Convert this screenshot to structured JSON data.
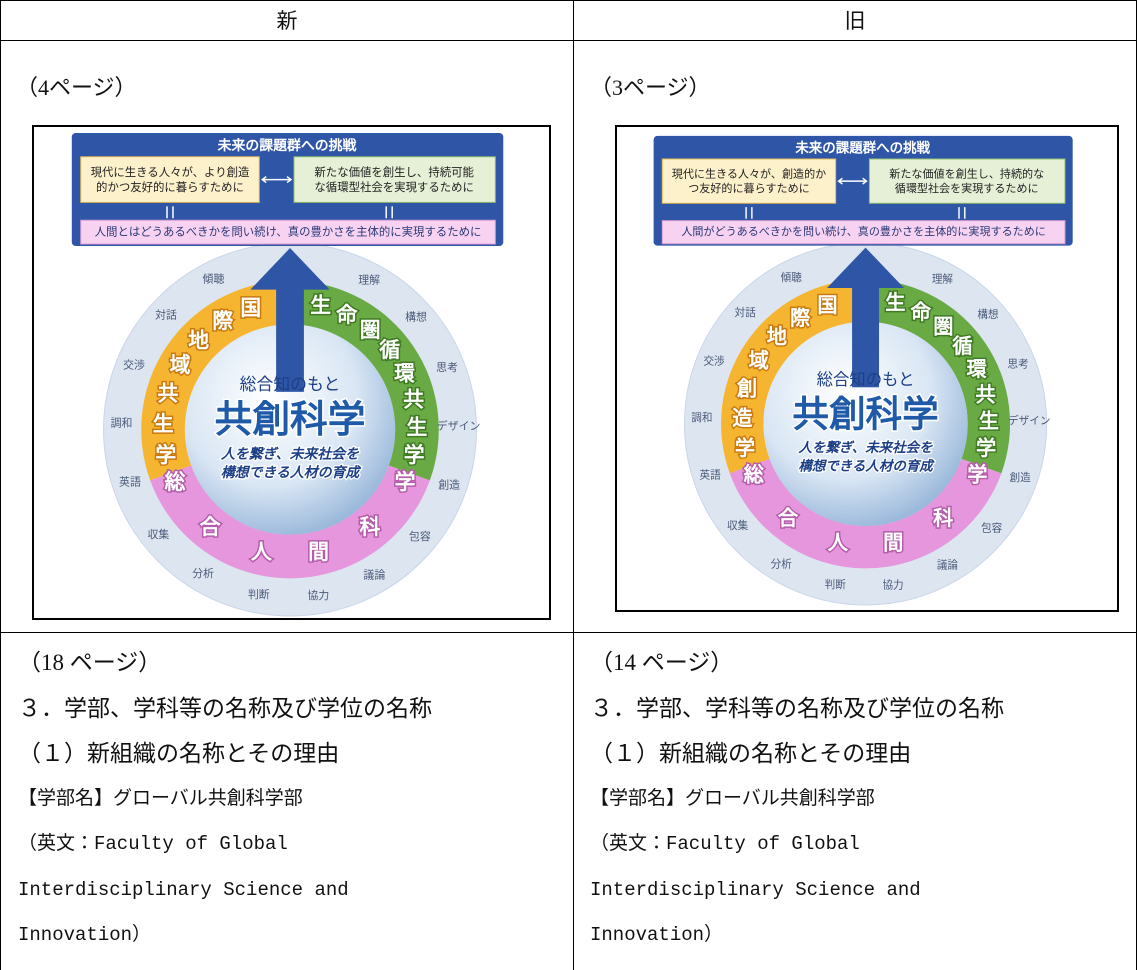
{
  "table": {
    "header": [
      "新",
      "旧"
    ],
    "columns": [
      {
        "page_label": "（4ページ）",
        "diagram": {
          "title": "未来の課題群への挑戦",
          "box_left": [
            "現代に生きる人々が、より創造",
            "的かつ友好的に暮らすために"
          ],
          "box_right": [
            "新たな価値を創生し、持続可能",
            "な循環型社会を実現するために"
          ],
          "bottom_bar": "人間とはどうあるべきかを問い続け、真の豊かさを主体的に実現するために",
          "left_arc": [
            "国",
            "際",
            "地",
            "域",
            "共",
            "生",
            "学"
          ],
          "right_arc": [
            "生",
            "命",
            "圏",
            "循",
            "環",
            "共",
            "生",
            "学"
          ],
          "bottom_arc": [
            "総",
            "合",
            "人",
            "間",
            "科",
            "学"
          ],
          "outer_words": [
            "理解",
            "構想",
            "思考",
            "デザイン",
            "創造",
            "包容",
            "議論",
            "協力",
            "判断",
            "分析",
            "収集",
            "英語",
            "調和",
            "交渉",
            "対話",
            "傾聴"
          ],
          "center_caption": "総合知のもと",
          "center_title": "共創科学",
          "center_tagline": [
            "人を繋ぎ、未来社会を",
            "構想できる人材の育成"
          ]
        },
        "page_label_2": "（18 ページ）",
        "text_lines": [
          "３．学部、学科等の名称及び学位の名称",
          "（１）新組織の名称とその理由",
          "【学部名】グローバル共創科学部",
          "（英文：Faculty of Global",
          "Interdisciplinary Science and",
          "Innovation）"
        ]
      },
      {
        "page_label": "（3ページ）",
        "diagram": {
          "title": "未来の課題群への挑戦",
          "box_left": [
            "現代に生きる人々が、創造的か",
            "つ友好的に暮らすために"
          ],
          "box_right": [
            "新たな価値を創生し、持続的な",
            "循環型社会を実現するために"
          ],
          "bottom_bar": "人間がどうあるべきかを問い続け、真の豊かさを主体的に実現するために",
          "left_arc": [
            "国",
            "際",
            "地",
            "域",
            "創",
            "造",
            "学"
          ],
          "right_arc": [
            "生",
            "命",
            "圏",
            "循",
            "環",
            "共",
            "生",
            "学"
          ],
          "bottom_arc": [
            "総",
            "合",
            "人",
            "間",
            "科",
            "学"
          ],
          "outer_words": [
            "理解",
            "構想",
            "思考",
            "デザイン",
            "創造",
            "包容",
            "議論",
            "協力",
            "判断",
            "分析",
            "収集",
            "英語",
            "調和",
            "交渉",
            "対話",
            "傾聴"
          ],
          "center_caption": "総合知のもと",
          "center_title": "共創科学",
          "center_tagline": [
            "人を繋ぎ、未来社会を",
            "構想できる人材の育成"
          ]
        },
        "page_label_2": "（14 ページ）",
        "text_lines": [
          "３．学部、学科等の名称及び学位の名称",
          "（１）新組織の名称とその理由",
          "【学部名】グローバル共創科学部",
          "（英文：Faculty of Global",
          "Interdisciplinary Science and",
          "Innovation）"
        ]
      }
    ]
  }
}
